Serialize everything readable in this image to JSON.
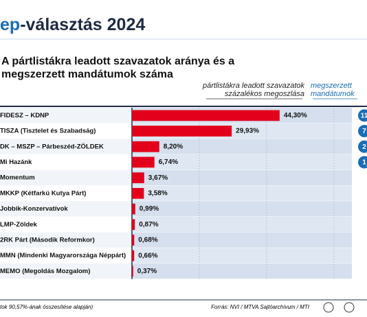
{
  "header": {
    "logo": "ep",
    "title": "-választás 2024"
  },
  "chart_data": {
    "type": "bar",
    "orientation": "horizontal",
    "title": "A pártlistákra leadott szavazatok aránya és a megszerzett mandátumok száma",
    "categories": [
      "FIDESZ – KDNP",
      "TISZA (Tisztelet és Szabadság)",
      "DK – MSZP – Párbeszéd-ZÖLDEK",
      "Mi Hazánk",
      "Momentum",
      "MKKP (Kétfarkú Kutya Párt)",
      "Jobbik-Konzervatívok",
      "LMP-Zöldek",
      "2RK Párt (Második Reformkor)",
      "MMN (Mindenki Magyarországa Néppárt)",
      "MEMO (Megoldás Mozgalom)"
    ],
    "series": [
      {
        "name": "pártlistákra leadott szavazatok százalékos megoszlása",
        "color": "#e3001b",
        "values": [
          44.3,
          29.93,
          8.2,
          6.74,
          3.67,
          3.58,
          0.99,
          0.87,
          0.68,
          0.66,
          0.37
        ],
        "value_labels": [
          "44,30%",
          "29,93%",
          "8,20%",
          "6,74%",
          "3,67%",
          "3,58%",
          "0,99%",
          "0,87%",
          "0,68%",
          "0,66%",
          "0,37%"
        ]
      },
      {
        "name": "megszerzett mandátumok",
        "color": "#1b6db4",
        "values": [
          11,
          7,
          2,
          1,
          null,
          null,
          null,
          null,
          null,
          null,
          null
        ]
      }
    ],
    "footnote": "tok 90,57%-ának összesítése alapján)",
    "source": "Forrás: NVI / MTVA Sajtóarchívum / MTI"
  }
}
